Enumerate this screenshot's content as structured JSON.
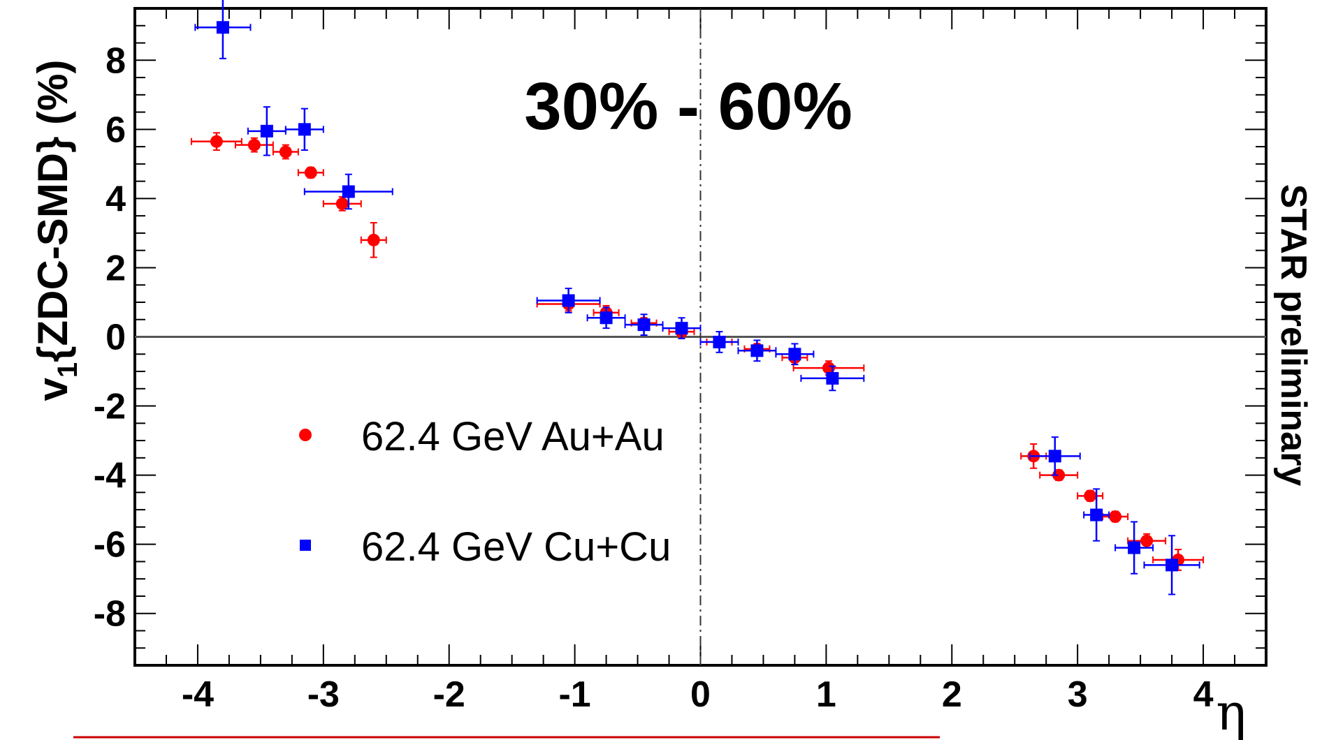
{
  "chart_data": {
    "type": "scatter",
    "title": "30% - 60%",
    "side_label": "STAR preliminary",
    "ylabel": {
      "main": "v",
      "sub": "1",
      "rest": "{ZDC-SMD} (%)"
    },
    "xlabel": "η",
    "xlim": [
      -4.5,
      4.5
    ],
    "ylim": [
      -9.5,
      9.5
    ],
    "xticks": [
      -4,
      -3,
      -2,
      -1,
      0,
      1,
      2,
      3,
      4
    ],
    "yticks": [
      -8,
      -6,
      -4,
      -2,
      0,
      2,
      4,
      6,
      8
    ],
    "legend_position": "lower-left",
    "series": [
      {
        "name": "62.4 GeV Au+Au",
        "marker": "circle",
        "color": "#ff0000",
        "points": [
          {
            "x": -3.85,
            "y": 5.65,
            "xerr": 0.2,
            "yerr": 0.25
          },
          {
            "x": -3.55,
            "y": 5.55,
            "xerr": 0.15,
            "yerr": 0.2
          },
          {
            "x": -3.3,
            "y": 5.35,
            "xerr": 0.1,
            "yerr": 0.2
          },
          {
            "x": -3.1,
            "y": 4.75,
            "xerr": 0.1,
            "yerr": 0.15
          },
          {
            "x": -2.85,
            "y": 3.85,
            "xerr": 0.15,
            "yerr": 0.2
          },
          {
            "x": -2.6,
            "y": 2.8,
            "xerr": 0.1,
            "yerr": 0.5
          },
          {
            "x": -1.05,
            "y": 0.95,
            "xerr": 0.25,
            "yerr": 0.2
          },
          {
            "x": -0.75,
            "y": 0.7,
            "xerr": 0.1,
            "yerr": 0.2
          },
          {
            "x": -0.45,
            "y": 0.4,
            "xerr": 0.1,
            "yerr": 0.15
          },
          {
            "x": -0.15,
            "y": 0.15,
            "xerr": 0.1,
            "yerr": 0.15
          },
          {
            "x": 0.15,
            "y": -0.15,
            "xerr": 0.1,
            "yerr": 0.15
          },
          {
            "x": 0.45,
            "y": -0.35,
            "xerr": 0.1,
            "yerr": 0.15
          },
          {
            "x": 0.75,
            "y": -0.6,
            "xerr": 0.1,
            "yerr": 0.2
          },
          {
            "x": 1.02,
            "y": -0.9,
            "xerr": 0.28,
            "yerr": 0.2
          },
          {
            "x": 2.65,
            "y": -3.45,
            "xerr": 0.1,
            "yerr": 0.35
          },
          {
            "x": 2.85,
            "y": -4.0,
            "xerr": 0.15,
            "yerr": 0.15
          },
          {
            "x": 3.1,
            "y": -4.6,
            "xerr": 0.1,
            "yerr": 0.15
          },
          {
            "x": 3.3,
            "y": -5.2,
            "xerr": 0.1,
            "yerr": 0.15
          },
          {
            "x": 3.55,
            "y": -5.9,
            "xerr": 0.15,
            "yerr": 0.2
          },
          {
            "x": 3.8,
            "y": -6.45,
            "xerr": 0.2,
            "yerr": 0.3
          }
        ]
      },
      {
        "name": "62.4 GeV Cu+Cu",
        "marker": "square",
        "color": "#0000ff",
        "points": [
          {
            "x": -3.8,
            "y": 8.95,
            "xerr": 0.22,
            "yerr": 0.9
          },
          {
            "x": -3.45,
            "y": 5.95,
            "xerr": 0.15,
            "yerr": 0.7
          },
          {
            "x": -3.15,
            "y": 6.0,
            "xerr": 0.15,
            "yerr": 0.6
          },
          {
            "x": -2.8,
            "y": 4.2,
            "xerr": 0.35,
            "yerr": 0.5
          },
          {
            "x": -1.05,
            "y": 1.05,
            "xerr": 0.25,
            "yerr": 0.35
          },
          {
            "x": -0.75,
            "y": 0.55,
            "xerr": 0.15,
            "yerr": 0.3
          },
          {
            "x": -0.45,
            "y": 0.35,
            "xerr": 0.15,
            "yerr": 0.3
          },
          {
            "x": -0.15,
            "y": 0.25,
            "xerr": 0.15,
            "yerr": 0.3
          },
          {
            "x": 0.15,
            "y": -0.15,
            "xerr": 0.15,
            "yerr": 0.3
          },
          {
            "x": 0.45,
            "y": -0.4,
            "xerr": 0.15,
            "yerr": 0.3
          },
          {
            "x": 0.75,
            "y": -0.5,
            "xerr": 0.15,
            "yerr": 0.3
          },
          {
            "x": 1.05,
            "y": -1.2,
            "xerr": 0.25,
            "yerr": 0.35
          },
          {
            "x": 2.82,
            "y": -3.45,
            "xerr": 0.2,
            "yerr": 0.55
          },
          {
            "x": 3.15,
            "y": -5.15,
            "xerr": 0.1,
            "yerr": 0.75
          },
          {
            "x": 3.45,
            "y": -6.1,
            "xerr": 0.15,
            "yerr": 0.75
          },
          {
            "x": 3.75,
            "y": -6.6,
            "xerr": 0.22,
            "yerr": 0.85
          }
        ]
      }
    ],
    "reference_lines": {
      "horizontal_y0": true,
      "vertical_x0_dashdot": true
    }
  },
  "colors": {
    "axis": "#000000",
    "zero_line": "#555555",
    "underline": "#cc0000"
  }
}
